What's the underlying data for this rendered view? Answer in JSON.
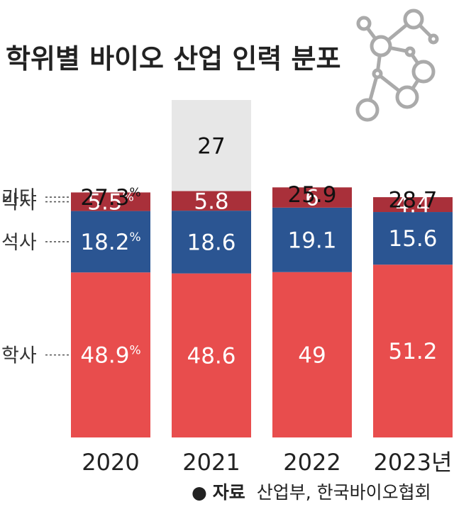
{
  "title": "학위별 바이오 산업 인력 분포",
  "source": {
    "bullet": "●",
    "label": "자료",
    "text": "산업부, 한국바이오협회"
  },
  "chart_data": {
    "type": "bar",
    "stacked": true,
    "title": "학위별 바이오 산업 인력 분포",
    "categories": [
      "2020",
      "2021",
      "2022",
      "2023년"
    ],
    "unit": "%",
    "series": [
      {
        "name": "학사",
        "values": [
          48.9,
          48.6,
          49,
          51.2
        ],
        "labels": [
          "48.9",
          "48.6",
          "49",
          "51.2"
        ],
        "color": "#e84d4d",
        "text_color": "#ffffff"
      },
      {
        "name": "석사",
        "values": [
          18.2,
          18.6,
          19.1,
          15.6
        ],
        "labels": [
          "18.2",
          "18.6",
          "19.1",
          "15.6"
        ],
        "color": "#2b5592",
        "text_color": "#ffffff"
      },
      {
        "name": "박사",
        "values": [
          5.5,
          5.8,
          6,
          4.4
        ],
        "labels": [
          "5.5",
          "5.8",
          "6",
          "4.4"
        ],
        "color": "#a9303a",
        "text_color": "#ffffff"
      },
      {
        "name": "기타",
        "values": [
          27.3,
          27,
          25.9,
          28.7
        ],
        "labels": [
          "27.3",
          "27",
          "25.9",
          "28.7"
        ],
        "color": "#e7e7e7",
        "text_color": "#111111"
      }
    ],
    "ylim": [
      0,
      100
    ],
    "legend": "left",
    "grid": false
  },
  "colors": {
    "molecule": "#aaaaaa",
    "leader": "#555555"
  }
}
